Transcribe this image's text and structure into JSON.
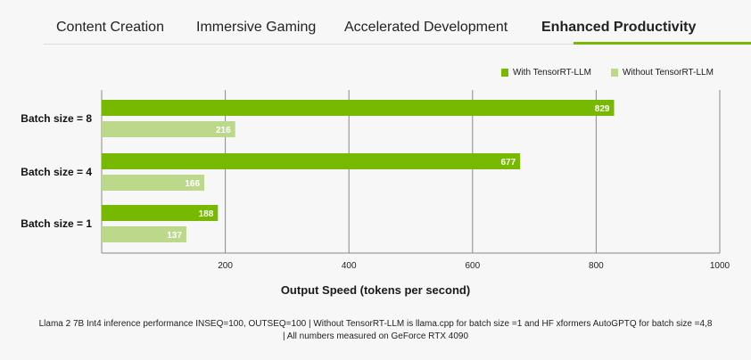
{
  "tabs": [
    {
      "label": "Content Creation",
      "active": false
    },
    {
      "label": "Immersive Gaming",
      "active": false
    },
    {
      "label": "Accelerated Development",
      "active": false
    },
    {
      "label": "Enhanced Productivity",
      "active": true
    }
  ],
  "colors": {
    "accent": "#76b900",
    "with": "#76b900",
    "without": "#bcd98b"
  },
  "chart_data": {
    "type": "bar",
    "orientation": "horizontal",
    "categories": [
      "Batch size = 8",
      "Batch size = 4",
      "Batch size = 1"
    ],
    "series": [
      {
        "name": "With TensorRT-LLM",
        "values": [
          829,
          677,
          188
        ]
      },
      {
        "name": "Without TensorRT-LLM",
        "values": [
          216,
          166,
          137
        ]
      }
    ],
    "xlabel": "Output Speed (tokens per second)",
    "xlim": [
      0,
      1000
    ],
    "xticks": [
      200,
      400,
      600,
      800,
      1000
    ],
    "grid": true,
    "legend": "top-right",
    "footnote_line1": "Llama 2 7B Int4 inference performance INSEQ=100, OUTSEQ=100 | Without TensorRT-LLM is llama.cpp for batch size =1 and HF xformers AutoGPTQ for batch size =4,8",
    "footnote_line2": "| All numbers measured on GeForce RTX 4090"
  }
}
